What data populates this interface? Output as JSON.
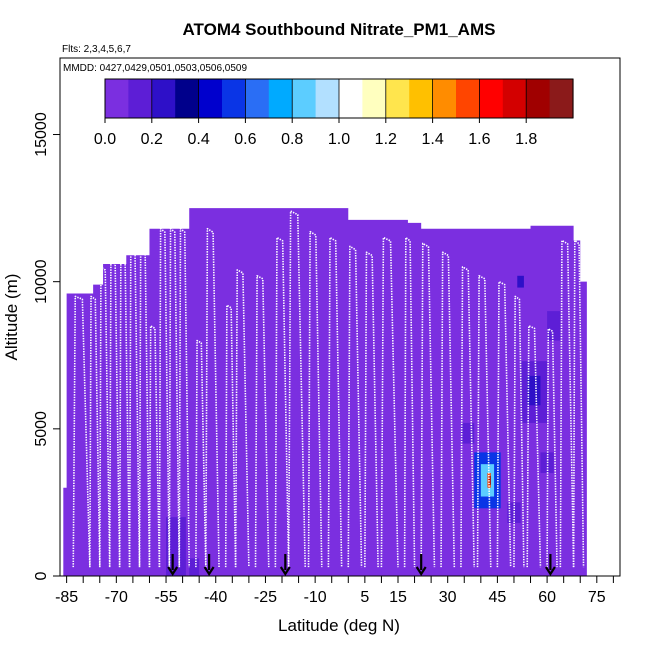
{
  "chart_data": {
    "type": "heatmap",
    "title": "ATOM4 Southbound Nitrate_PM1_AMS",
    "flights_label": "Flts: 2,3,4,5,6,7",
    "dates_label": "MMDD: 0427,0429,0501,0503,0506,0509",
    "xlabel": "Latitude (deg N)",
    "ylabel": "Altitude (m)",
    "xlim": [
      -87,
      82
    ],
    "ylim": [
      0,
      17600
    ],
    "x_ticks": [
      -85,
      -70,
      -55,
      -40,
      -25,
      -10,
      5,
      15,
      30,
      45,
      60,
      75
    ],
    "x_tick_labels": [
      "-85",
      "-70",
      "-55",
      "-40",
      "-25",
      "-10",
      "5",
      "15",
      "30",
      "45",
      "60",
      "75"
    ],
    "x_minor_ticks": [
      -80,
      -75,
      -65,
      -60,
      -50,
      -45,
      -35,
      -30,
      -20,
      -15,
      -5,
      0,
      10,
      20,
      25,
      35,
      40,
      50,
      55,
      65,
      70,
      80
    ],
    "y_ticks": [
      0,
      5000,
      10000,
      15000
    ],
    "y_tick_labels": [
      "0",
      "5000",
      "10000",
      "15000"
    ],
    "colorbar": {
      "min": 0.0,
      "max": 2.0,
      "ticks": [
        0.0,
        0.2,
        0.4,
        0.6,
        0.8,
        1.0,
        1.2,
        1.4,
        1.6,
        1.8
      ],
      "tick_labels": [
        "0.0",
        "0.2",
        "0.4",
        "0.6",
        "0.8",
        "1.0",
        "1.2",
        "1.4",
        "1.6",
        "1.8"
      ],
      "colors": [
        "#7b2fe0",
        "#5d1ed6",
        "#2e10c8",
        "#00008b",
        "#0000cd",
        "#0a35e6",
        "#2a6ef5",
        "#00aaff",
        "#5ccdff",
        "#b2e0ff",
        "#ffffff",
        "#ffffbf",
        "#ffe54d",
        "#ffc000",
        "#ff8c00",
        "#ff4500",
        "#ff0000",
        "#d30000",
        "#a00000",
        "#8b1a1a"
      ]
    },
    "background_value": 0.05,
    "envelope": [
      {
        "lat": -86,
        "top": 3000
      },
      {
        "lat": -85,
        "top": 9600
      },
      {
        "lat": -77,
        "top": 9900
      },
      {
        "lat": -74,
        "top": 10600
      },
      {
        "lat": -67,
        "top": 10900
      },
      {
        "lat": -60,
        "top": 11800
      },
      {
        "lat": -48,
        "top": 12500
      },
      {
        "lat": -18,
        "top": 12500
      },
      {
        "lat": 0,
        "top": 12100
      },
      {
        "lat": 18,
        "top": 12000
      },
      {
        "lat": 22,
        "top": 11800
      },
      {
        "lat": 55,
        "top": 11900
      },
      {
        "lat": 68,
        "top": 11400
      },
      {
        "lat": 70,
        "top": 10000
      },
      {
        "lat": 72,
        "top": 2500
      },
      {
        "lat": 72,
        "top": 0
      }
    ],
    "enhancements": [
      {
        "lat": [
          -55,
          -49
        ],
        "alt": [
          0,
          2000
        ],
        "value": 0.18
      },
      {
        "lat": [
          -48,
          -45
        ],
        "alt": [
          0,
          600
        ],
        "value": 0.12
      },
      {
        "lat": [
          38,
          46
        ],
        "alt": [
          2300,
          4200
        ],
        "value": 0.55
      },
      {
        "lat": [
          40,
          44
        ],
        "alt": [
          2700,
          3800
        ],
        "value": 0.8
      },
      {
        "lat": [
          42,
          43
        ],
        "alt": [
          3000,
          3500
        ],
        "value": 1.5
      },
      {
        "lat": [
          42.5,
          43
        ],
        "alt": [
          3100,
          3400
        ],
        "value": 1.8
      },
      {
        "lat": [
          52,
          60
        ],
        "alt": [
          5200,
          7300
        ],
        "value": 0.18
      },
      {
        "lat": [
          54,
          58
        ],
        "alt": [
          5800,
          6800
        ],
        "value": 0.28
      },
      {
        "lat": [
          34,
          38
        ],
        "alt": [
          4500,
          5200
        ],
        "value": 0.14
      },
      {
        "lat": [
          51,
          53
        ],
        "alt": [
          9800,
          10200
        ],
        "value": 0.2
      },
      {
        "lat": [
          60,
          64
        ],
        "alt": [
          8000,
          9000
        ],
        "value": 0.12
      },
      {
        "lat": [
          48,
          52
        ],
        "alt": [
          1800,
          2500
        ],
        "value": 0.1
      },
      {
        "lat": [
          58,
          62
        ],
        "alt": [
          3500,
          4200
        ],
        "value": 0.12
      }
    ],
    "profiles": [
      {
        "lat": [
          -83,
          -78
        ],
        "top": 9500
      },
      {
        "lat": [
          -78,
          -75
        ],
        "top": 9500
      },
      {
        "lat": [
          -75,
          -72
        ],
        "top": 10500
      },
      {
        "lat": [
          -72,
          -69
        ],
        "top": 10700
      },
      {
        "lat": [
          -69,
          -66
        ],
        "top": 10800
      },
      {
        "lat": [
          -66,
          -63
        ],
        "top": 11000
      },
      {
        "lat": [
          -63,
          -60
        ],
        "top": 11500
      },
      {
        "lat": [
          -60,
          -57
        ],
        "top": 8500
      },
      {
        "lat": [
          -57,
          -54
        ],
        "top": 11800
      },
      {
        "lat": [
          -54,
          -51
        ],
        "top": 11800
      },
      {
        "lat": [
          -51,
          -48
        ],
        "top": 11800
      },
      {
        "lat": [
          -46,
          -43
        ],
        "top": 8000
      },
      {
        "lat": [
          -43,
          -39
        ],
        "top": 11800
      },
      {
        "lat": [
          -37,
          -34
        ],
        "top": 9200
      },
      {
        "lat": [
          -34,
          -30
        ],
        "top": 10400
      },
      {
        "lat": [
          -28,
          -24
        ],
        "top": 10200
      },
      {
        "lat": [
          -22,
          -18
        ],
        "top": 11500
      },
      {
        "lat": [
          -18,
          -13
        ],
        "top": 12400
      },
      {
        "lat": [
          -12,
          -8
        ],
        "top": 11700
      },
      {
        "lat": [
          -6,
          -2
        ],
        "top": 11500
      },
      {
        "lat": [
          0,
          4
        ],
        "top": 11200
      },
      {
        "lat": [
          5,
          9
        ],
        "top": 11000
      },
      {
        "lat": [
          10,
          15
        ],
        "top": 11500
      },
      {
        "lat": [
          17,
          20
        ],
        "top": 11500
      },
      {
        "lat": [
          22,
          26
        ],
        "top": 11300
      },
      {
        "lat": [
          28,
          32
        ],
        "top": 11000
      },
      {
        "lat": [
          34,
          38
        ],
        "top": 10500
      },
      {
        "lat": [
          39,
          43
        ],
        "top": 10200
      },
      {
        "lat": [
          45,
          49
        ],
        "top": 10000
      },
      {
        "lat": [
          50,
          53
        ],
        "top": 9500
      },
      {
        "lat": [
          54,
          58
        ],
        "top": 8500
      },
      {
        "lat": [
          60,
          63
        ],
        "top": 8400
      },
      {
        "lat": [
          64,
          68
        ],
        "top": 11400
      },
      {
        "lat": [
          68,
          71
        ],
        "top": 11400
      }
    ],
    "arrow_latitudes": [
      -53,
      -42,
      -19,
      22,
      61
    ]
  },
  "colors": {
    "profile_line": "#ffffff",
    "axis": "#000000",
    "arrow": "#000000"
  }
}
